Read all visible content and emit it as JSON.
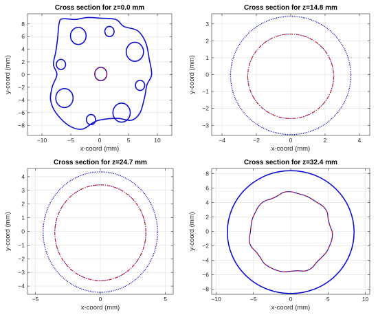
{
  "chart_data": [
    {
      "type": "scatter",
      "title": "Cross section for z=0.0 mm",
      "xlabel": "x-coord (mm)",
      "ylabel": "y-coord (mm)",
      "xlim": [
        -12.5,
        12.5
      ],
      "ylim": [
        -9.6,
        9.6
      ],
      "xticks": [
        -10,
        -5,
        0,
        5,
        10
      ],
      "yticks": [
        -8,
        -6,
        -4,
        -2,
        0,
        2,
        4,
        6,
        8
      ],
      "grid": true,
      "series": [
        {
          "color": "#1010d0",
          "shape": "outer-lobed-boundary",
          "points": [
            [
              -6.4,
              8.8
            ],
            [
              -4.2,
              8.7
            ],
            [
              -2.2,
              9.0
            ],
            [
              0.2,
              8.9
            ],
            [
              2.8,
              8.7
            ],
            [
              4.2,
              7.6
            ],
            [
              6.6,
              6.9
            ],
            [
              8.0,
              5.0
            ],
            [
              8.6,
              2.4
            ],
            [
              9.0,
              0.0
            ],
            [
              8.2,
              -1.6
            ],
            [
              7.8,
              -3.5
            ],
            [
              7.0,
              -6.0
            ],
            [
              5.5,
              -7.2
            ],
            [
              3.0,
              -6.9
            ],
            [
              -0.5,
              -7.3
            ],
            [
              -3.0,
              -8.6
            ],
            [
              -5.4,
              -8.0
            ],
            [
              -7.6,
              -6.0
            ],
            [
              -8.5,
              -4.0
            ],
            [
              -8.2,
              -1.9
            ],
            [
              -7.4,
              0.0
            ],
            [
              -8.0,
              1.6
            ],
            [
              -7.6,
              3.6
            ],
            [
              -7.3,
              5.6
            ],
            [
              -7.0,
              8.2
            ]
          ]
        }
      ],
      "circles": [
        {
          "cx": -3.7,
          "cy": 6.1,
          "r": 1.35,
          "color": "#1010d0"
        },
        {
          "cx": 1.7,
          "cy": 6.8,
          "r": 0.8,
          "color": "#1010d0"
        },
        {
          "cx": 6.1,
          "cy": 3.6,
          "r": 1.5,
          "color": "#1010d0"
        },
        {
          "cx": -6.7,
          "cy": 1.6,
          "r": 0.8,
          "color": "#1010d0"
        },
        {
          "cx": 0.2,
          "cy": 0.1,
          "r": 1.05,
          "color": "#1010d0",
          "inner_color": "#d01020"
        },
        {
          "cx": 7.0,
          "cy": -1.7,
          "r": 0.8,
          "color": "#1010d0"
        },
        {
          "cx": -6.1,
          "cy": -3.7,
          "r": 1.5,
          "color": "#1010d0"
        },
        {
          "cx": -1.5,
          "cy": -7.1,
          "r": 0.8,
          "color": "#1010d0"
        },
        {
          "cx": 3.8,
          "cy": -6.0,
          "r": 1.5,
          "color": "#1010d0"
        }
      ]
    },
    {
      "type": "scatter",
      "title": "Cross section for z=14.8 mm",
      "xlabel": "x-coord (mm)",
      "ylabel": "y-coord (mm)",
      "xlim": [
        -4.6,
        4.6
      ],
      "ylim": [
        -3.6,
        3.6
      ],
      "xticks": [
        -4,
        -2,
        0,
        2,
        4
      ],
      "yticks": [
        -3,
        -2,
        -1,
        0,
        1,
        2,
        3
      ],
      "grid": true,
      "circles": [
        {
          "cx": 0.0,
          "cy": -0.05,
          "r": 3.5,
          "color": "#1010d0",
          "style": "dotted"
        },
        {
          "cx": 0.0,
          "cy": -0.1,
          "r": 2.5,
          "color": "#d01020",
          "style": "dashdot",
          "overlay_color": "#1010d0"
        }
      ]
    },
    {
      "type": "scatter",
      "title": "Cross section for z=24.7 mm",
      "xlabel": "x-coord (mm)",
      "ylabel": "y-coord (mm)",
      "xlim": [
        -5.6,
        5.6
      ],
      "ylim": [
        -4.6,
        4.6
      ],
      "xticks": [
        -5,
        0,
        5
      ],
      "yticks": [
        -4,
        -3,
        -2,
        -1,
        0,
        1,
        2,
        3,
        4
      ],
      "grid": true,
      "circles": [
        {
          "cx": 0.0,
          "cy": -0.05,
          "r": 4.4,
          "color": "#1010d0",
          "style": "dotted"
        },
        {
          "cx": 0.0,
          "cy": -0.1,
          "r": 3.5,
          "color": "#d01020",
          "style": "dashdot",
          "overlay_color": "#1010d0"
        }
      ]
    },
    {
      "type": "scatter",
      "title": "Cross section for z=32.4 mm",
      "xlabel": "x-coord (mm)",
      "ylabel": "y-coord (mm)",
      "xlim": [
        -10.6,
        10.6
      ],
      "ylim": [
        -8.7,
        8.7
      ],
      "xticks": [
        -10,
        -5,
        0,
        5,
        10
      ],
      "yticks": [
        -8,
        -6,
        -4,
        -2,
        0,
        2,
        4,
        6,
        8
      ],
      "grid": true,
      "circles": [
        {
          "cx": 0.0,
          "cy": -0.1,
          "r": 8.5,
          "color": "#1010d0",
          "style": "solid"
        },
        {
          "cx": 0.0,
          "cy": -0.15,
          "r": 5.5,
          "color": "#d01020",
          "style": "dashdot",
          "overlay_color": "#1010d0",
          "wobble": true
        }
      ]
    }
  ]
}
